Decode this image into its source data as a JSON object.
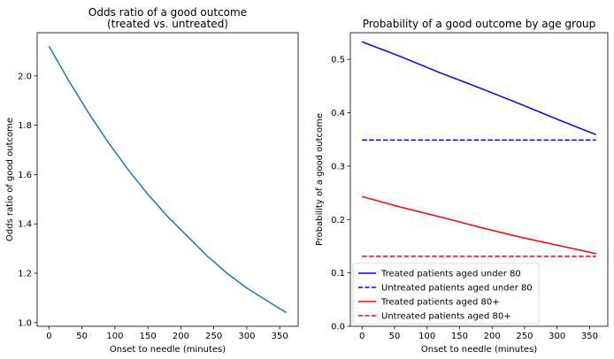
{
  "chart_data": [
    {
      "type": "line",
      "title": [
        "Odds ratio of a good outcome",
        "(treated vs. untreated)"
      ],
      "xlabel": "Onset to needle (minutes)",
      "ylabel": "Odds ratio of good outcome",
      "xlim": [
        -18,
        378
      ],
      "ylim": [
        0.985,
        2.175
      ],
      "xticks": [
        0,
        50,
        100,
        150,
        200,
        250,
        300,
        350
      ],
      "yticks": [
        1.0,
        1.2,
        1.4,
        1.6,
        1.8,
        2.0
      ],
      "ytick_labels": [
        "1.0",
        "1.2",
        "1.4",
        "1.6",
        "1.8",
        "2.0"
      ],
      "grid": false,
      "series": [
        {
          "color": "#1f77b4",
          "style": "solid",
          "x": [
            0,
            30,
            60,
            90,
            120,
            150,
            180,
            210,
            240,
            270,
            300,
            330,
            360
          ],
          "y": [
            2.12,
            1.98,
            1.85,
            1.73,
            1.62,
            1.52,
            1.43,
            1.35,
            1.27,
            1.2,
            1.14,
            1.09,
            1.04
          ]
        }
      ]
    },
    {
      "type": "line",
      "title": "Probability of a good outcome by age group",
      "xlabel": "Onset to needle (minutes)",
      "ylabel": "Probability of a good outcome",
      "xlim": [
        -18,
        378
      ],
      "ylim": [
        0.0,
        0.55
      ],
      "xticks": [
        0,
        50,
        100,
        150,
        200,
        250,
        300,
        350
      ],
      "yticks": [
        0.0,
        0.1,
        0.2,
        0.3,
        0.4,
        0.5
      ],
      "ytick_labels": [
        "0.0",
        "0.1",
        "0.2",
        "0.3",
        "0.4",
        "0.5"
      ],
      "grid": false,
      "legend_position": "lower-left",
      "series": [
        {
          "name": "Treated patients aged under 80",
          "color": "#0000ff",
          "style": "solid",
          "x": [
            0,
            60,
            120,
            180,
            240,
            300,
            360
          ],
          "y": [
            0.533,
            0.505,
            0.475,
            0.447,
            0.418,
            0.388,
            0.359
          ]
        },
        {
          "name": "Untreated patients aged under 80",
          "color": "#0000ff",
          "style": "dashed",
          "x": [
            0,
            360
          ],
          "y": [
            0.349,
            0.349
          ]
        },
        {
          "name": "Treated patients aged 80+",
          "color": "#ff0000",
          "style": "solid",
          "x": [
            0,
            60,
            120,
            180,
            240,
            300,
            360
          ],
          "y": [
            0.243,
            0.223,
            0.205,
            0.186,
            0.168,
            0.152,
            0.136
          ]
        },
        {
          "name": "Untreated patients aged 80+",
          "color": "#ff0000",
          "style": "dashed",
          "x": [
            0,
            360
          ],
          "y": [
            0.131,
            0.131
          ]
        }
      ]
    }
  ]
}
